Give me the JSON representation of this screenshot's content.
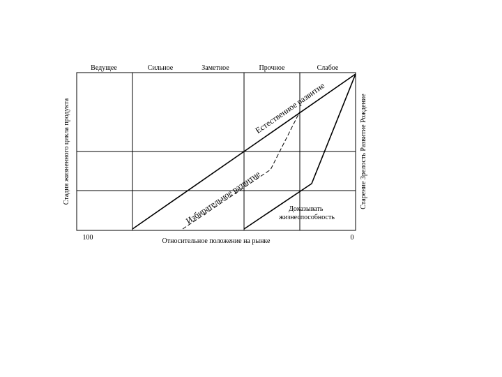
{
  "columns": [
    "Ведущее",
    "Сильное",
    "Заметное",
    "Прочное",
    "Слабое"
  ],
  "left_axis_label": "Стадия жизненного цикла продукта",
  "right_axis_label": "Старение Зрелость Развитие Рождение",
  "bottom_axis_label": "Относительное положение на рынке",
  "bottom_left_value": "100",
  "bottom_right_value": "0",
  "natural_development_label": "Естественное развитие",
  "selective_development_label": "Избирательное развитие",
  "proven_viability_label": "Доказывать жизнеспособность",
  "line_color": "#000000"
}
